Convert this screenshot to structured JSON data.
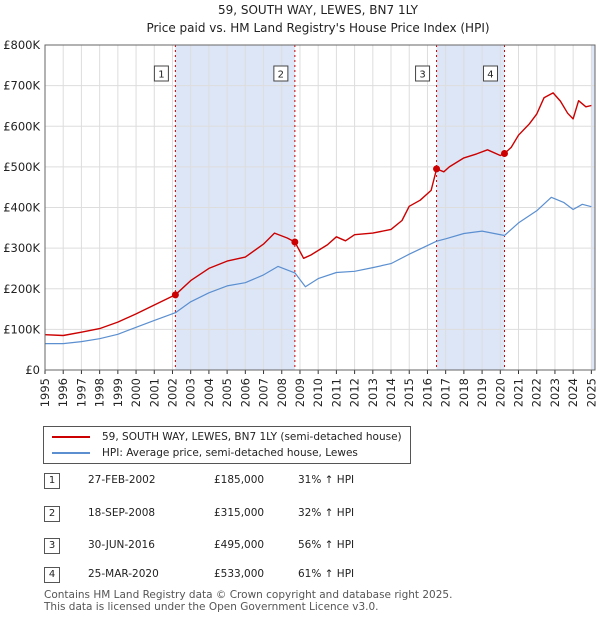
{
  "title_line1": "59, SOUTH WAY, LEWES, BN7 1LY",
  "title_line2": "Price paid vs. HM Land Registry's House Price Index (HPI)",
  "chart_data": {
    "type": "line",
    "title": "59, SOUTH WAY, LEWES, BN7 1LY — Price paid vs. HM Land Registry's House Price Index (HPI)",
    "xlim": [
      1995,
      2025.2
    ],
    "ylim": [
      0,
      800000
    ],
    "xticks": [
      1995,
      1996,
      1997,
      1998,
      1999,
      2000,
      2001,
      2002,
      2003,
      2004,
      2005,
      2006,
      2007,
      2008,
      2009,
      2010,
      2011,
      2012,
      2013,
      2014,
      2015,
      2016,
      2017,
      2018,
      2019,
      2020,
      2021,
      2022,
      2023,
      2024,
      2025
    ],
    "yticks": [
      {
        "value": 0,
        "label": "£0"
      },
      {
        "value": 100000,
        "label": "£100K"
      },
      {
        "value": 200000,
        "label": "£200K"
      },
      {
        "value": 300000,
        "label": "£300K"
      },
      {
        "value": 400000,
        "label": "£400K"
      },
      {
        "value": 500000,
        "label": "£500K"
      },
      {
        "value": 600000,
        "label": "£600K"
      },
      {
        "value": 700000,
        "label": "£700K"
      },
      {
        "value": 800000,
        "label": "£800K"
      }
    ],
    "colors": {
      "property": "#cc0000",
      "hpi": "#5b8fd0",
      "shade": "#dde6f7",
      "grid": "#dddddd",
      "sale_line": "#cc0000"
    },
    "series": [
      {
        "name": "59, SOUTH WAY, LEWES, BN7 1LY (semi-detached house)",
        "points": [
          [
            1995,
            87000
          ],
          [
            1996,
            85000
          ],
          [
            1997,
            93000
          ],
          [
            1998,
            102000
          ],
          [
            1999,
            118000
          ],
          [
            2000,
            138000
          ],
          [
            2001,
            160000
          ],
          [
            2002.16,
            185000
          ],
          [
            2003,
            220000
          ],
          [
            2004,
            250000
          ],
          [
            2005,
            268000
          ],
          [
            2006,
            278000
          ],
          [
            2007,
            310000
          ],
          [
            2007.6,
            337000
          ],
          [
            2008.3,
            325000
          ],
          [
            2008.72,
            315000
          ],
          [
            2009.2,
            275000
          ],
          [
            2009.6,
            283000
          ],
          [
            2010.5,
            308000
          ],
          [
            2011,
            328000
          ],
          [
            2011.5,
            318000
          ],
          [
            2012,
            333000
          ],
          [
            2013,
            337000
          ],
          [
            2014,
            346000
          ],
          [
            2014.6,
            368000
          ],
          [
            2015,
            403000
          ],
          [
            2015.6,
            418000
          ],
          [
            2016.2,
            442000
          ],
          [
            2016.5,
            495000
          ],
          [
            2016.9,
            488000
          ],
          [
            2017.2,
            500000
          ],
          [
            2018,
            522000
          ],
          [
            2018.7,
            532000
          ],
          [
            2019.3,
            542000
          ],
          [
            2020,
            528000
          ],
          [
            2020.23,
            533000
          ],
          [
            2020.6,
            548000
          ],
          [
            2021,
            578000
          ],
          [
            2021.6,
            606000
          ],
          [
            2022,
            630000
          ],
          [
            2022.4,
            670000
          ],
          [
            2022.9,
            682000
          ],
          [
            2023.3,
            662000
          ],
          [
            2023.7,
            632000
          ],
          [
            2024,
            618000
          ],
          [
            2024.3,
            663000
          ],
          [
            2024.7,
            648000
          ],
          [
            2025,
            651000
          ]
        ]
      },
      {
        "name": "HPI: Average price, semi-detached house, Lewes",
        "points": [
          [
            1995,
            65000
          ],
          [
            1996,
            65000
          ],
          [
            1997,
            70000
          ],
          [
            1998,
            77000
          ],
          [
            1999,
            88000
          ],
          [
            2000,
            105000
          ],
          [
            2001,
            122000
          ],
          [
            2002.16,
            141000
          ],
          [
            2003,
            168000
          ],
          [
            2004,
            190000
          ],
          [
            2005,
            207000
          ],
          [
            2006,
            215000
          ],
          [
            2007,
            234000
          ],
          [
            2007.8,
            255000
          ],
          [
            2008.72,
            239000
          ],
          [
            2009.3,
            205000
          ],
          [
            2010,
            225000
          ],
          [
            2011,
            240000
          ],
          [
            2012,
            243000
          ],
          [
            2013,
            252000
          ],
          [
            2014,
            262000
          ],
          [
            2015,
            285000
          ],
          [
            2016.5,
            317000
          ],
          [
            2017,
            323000
          ],
          [
            2018,
            336000
          ],
          [
            2019,
            342000
          ],
          [
            2020.23,
            331000
          ],
          [
            2021,
            362000
          ],
          [
            2022,
            392000
          ],
          [
            2022.8,
            425000
          ],
          [
            2023.5,
            412000
          ],
          [
            2024,
            395000
          ],
          [
            2024.5,
            408000
          ],
          [
            2025,
            402000
          ]
        ]
      }
    ],
    "sales": [
      {
        "n": 1,
        "x": 2002.16,
        "price": 185000
      },
      {
        "n": 2,
        "x": 2008.72,
        "price": 315000
      },
      {
        "n": 3,
        "x": 2016.5,
        "price": 495000
      },
      {
        "n": 4,
        "x": 2020.23,
        "price": 533000
      }
    ],
    "shaded_ranges": [
      [
        2002.16,
        2008.72
      ],
      [
        2016.5,
        2020.23
      ],
      [
        2025,
        2025.2
      ]
    ]
  },
  "legend": {
    "property": "59, SOUTH WAY, LEWES, BN7 1LY (semi-detached house)",
    "hpi": "HPI: Average price, semi-detached house, Lewes"
  },
  "table": [
    {
      "num": "1",
      "date": "27-FEB-2002",
      "price": "£185,000",
      "hpi": "31% ↑ HPI"
    },
    {
      "num": "2",
      "date": "18-SEP-2008",
      "price": "£315,000",
      "hpi": "32% ↑ HPI"
    },
    {
      "num": "3",
      "date": "30-JUN-2016",
      "price": "£495,000",
      "hpi": "56% ↑ HPI"
    },
    {
      "num": "4",
      "date": "25-MAR-2020",
      "price": "£533,000",
      "hpi": "61% ↑ HPI"
    }
  ],
  "footer": {
    "line1": "Contains HM Land Registry data © Crown copyright and database right 2025.",
    "line2": "This data is licensed under the Open Government Licence v3.0."
  }
}
